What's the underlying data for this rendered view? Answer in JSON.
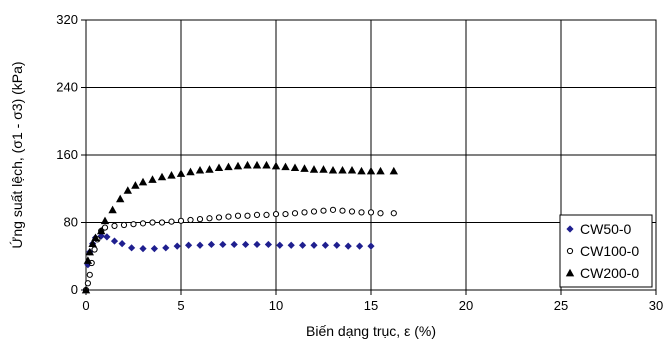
{
  "chart_data": {
    "type": "scatter",
    "xlabel": "Biến dạng trục, ε (%)",
    "ylabel": "Ứng suất lệch, (σ1 - σ3) (kPa)",
    "xlim": [
      0,
      30
    ],
    "ylim": [
      0,
      320
    ],
    "x_ticks": [
      0,
      5,
      10,
      15,
      20,
      25,
      30
    ],
    "y_ticks": [
      0,
      80,
      160,
      240,
      320
    ],
    "grid": true,
    "legend_position": "bottom-right",
    "series": [
      {
        "name": "CW50-0",
        "marker": "diamond",
        "color": "#1f1f8f",
        "points": [
          [
            0,
            0
          ],
          [
            0.1,
            30
          ],
          [
            0.2,
            45
          ],
          [
            0.35,
            55
          ],
          [
            0.5,
            62
          ],
          [
            0.8,
            64
          ],
          [
            1.1,
            63
          ],
          [
            1.5,
            58
          ],
          [
            1.9,
            55
          ],
          [
            2.4,
            50
          ],
          [
            3.0,
            49
          ],
          [
            3.6,
            49
          ],
          [
            4.2,
            50
          ],
          [
            4.8,
            52
          ],
          [
            5.4,
            53
          ],
          [
            6.0,
            53
          ],
          [
            6.6,
            54
          ],
          [
            7.2,
            54
          ],
          [
            7.8,
            54
          ],
          [
            8.4,
            54
          ],
          [
            9.0,
            54
          ],
          [
            9.6,
            54
          ],
          [
            10.2,
            53
          ],
          [
            10.8,
            53
          ],
          [
            11.4,
            53
          ],
          [
            12.0,
            53
          ],
          [
            12.6,
            53
          ],
          [
            13.2,
            53
          ],
          [
            13.8,
            52
          ],
          [
            14.4,
            52
          ],
          [
            15.0,
            52
          ]
        ]
      },
      {
        "name": "CW100-0",
        "marker": "circle",
        "color": "#000000",
        "points": [
          [
            0,
            0
          ],
          [
            0.1,
            8
          ],
          [
            0.2,
            18
          ],
          [
            0.3,
            32
          ],
          [
            0.45,
            48
          ],
          [
            0.6,
            60
          ],
          [
            0.8,
            70
          ],
          [
            1.0,
            74
          ],
          [
            1.5,
            76
          ],
          [
            2.0,
            77
          ],
          [
            2.5,
            78
          ],
          [
            3.0,
            79
          ],
          [
            3.5,
            80
          ],
          [
            4.0,
            80
          ],
          [
            4.5,
            81
          ],
          [
            5.0,
            82
          ],
          [
            5.5,
            83
          ],
          [
            6.0,
            84
          ],
          [
            6.5,
            85
          ],
          [
            7.0,
            86
          ],
          [
            7.5,
            87
          ],
          [
            8.0,
            88
          ],
          [
            8.5,
            88
          ],
          [
            9.0,
            89
          ],
          [
            9.5,
            89
          ],
          [
            10.0,
            90
          ],
          [
            10.5,
            90
          ],
          [
            11.0,
            91
          ],
          [
            11.5,
            92
          ],
          [
            12.0,
            93
          ],
          [
            12.5,
            94
          ],
          [
            13.0,
            95
          ],
          [
            13.5,
            94
          ],
          [
            14.0,
            93
          ],
          [
            14.5,
            92
          ],
          [
            15.0,
            92
          ],
          [
            15.5,
            91
          ],
          [
            16.2,
            91
          ]
        ]
      },
      {
        "name": "CW200-0",
        "marker": "triangle",
        "color": "#000000",
        "points": [
          [
            0,
            0
          ],
          [
            0.1,
            35
          ],
          [
            0.2,
            45
          ],
          [
            0.35,
            55
          ],
          [
            0.5,
            62
          ],
          [
            0.8,
            70
          ],
          [
            1.0,
            82
          ],
          [
            1.4,
            95
          ],
          [
            1.8,
            108
          ],
          [
            2.2,
            118
          ],
          [
            2.6,
            124
          ],
          [
            3.0,
            128
          ],
          [
            3.5,
            131
          ],
          [
            4.0,
            134
          ],
          [
            4.5,
            136
          ],
          [
            5.0,
            138
          ],
          [
            5.5,
            140
          ],
          [
            6.0,
            142
          ],
          [
            6.5,
            143
          ],
          [
            7.0,
            145
          ],
          [
            7.5,
            146
          ],
          [
            8.0,
            147
          ],
          [
            8.5,
            148
          ],
          [
            9.0,
            148
          ],
          [
            9.5,
            148
          ],
          [
            10.0,
            147
          ],
          [
            10.5,
            146
          ],
          [
            11.0,
            145
          ],
          [
            11.5,
            144
          ],
          [
            12.0,
            143
          ],
          [
            12.5,
            143
          ],
          [
            13.0,
            142
          ],
          [
            13.5,
            142
          ],
          [
            14.0,
            142
          ],
          [
            14.5,
            141
          ],
          [
            15.0,
            141
          ],
          [
            15.5,
            141
          ],
          [
            16.2,
            141
          ]
        ]
      }
    ]
  }
}
